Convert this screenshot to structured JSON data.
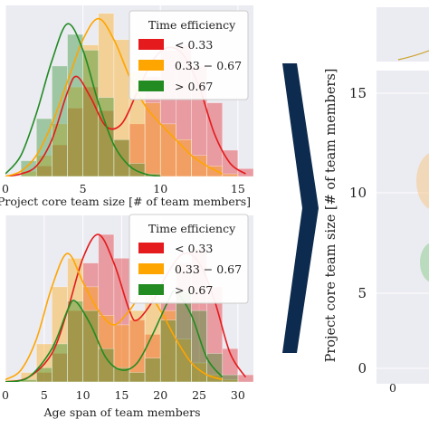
{
  "colors": {
    "low": "#e41a1c",
    "mid": "#ffa500",
    "high": "#228b22",
    "panel_bg": "#ebebf2",
    "arrow": "#0d2b4e"
  },
  "arrow_icon": "right-chevron-arrow",
  "chart_data": [
    {
      "type": "histogram",
      "panel": "top-left",
      "xlabel": "Project core team size [# of team members]",
      "ylabel": "",
      "xlim": [
        0,
        16
      ],
      "xticks": [
        "0",
        "5",
        "10",
        "15"
      ],
      "grid": true,
      "legend": {
        "placement": "top-right",
        "title": "Time efficiency",
        "entries": [
          "< 0.33",
          "0.33 − 0.67",
          "> 0.67"
        ]
      },
      "series": [
        {
          "name": "< 0.33",
          "color": "low",
          "bin_edges": [
            0,
            1,
            2,
            3,
            4,
            5,
            6,
            7,
            8,
            9,
            10,
            11,
            12,
            13,
            14,
            15,
            16
          ],
          "counts": [
            0,
            0,
            4,
            12,
            26,
            34,
            25,
            14,
            20,
            38,
            48,
            50,
            42,
            28,
            10,
            3,
            0
          ],
          "kde": [
            [
              0,
              0
            ],
            [
              1,
              1
            ],
            [
              2,
              4
            ],
            [
              3,
              14
            ],
            [
              4,
              32
            ],
            [
              4.6,
              38
            ],
            [
              5.5,
              30
            ],
            [
              6.5,
              19
            ],
            [
              7.5,
              20
            ],
            [
              8.5,
              32
            ],
            [
              9.5,
              44
            ],
            [
              10.5,
              49
            ],
            [
              11.5,
              46
            ],
            [
              12.5,
              34
            ],
            [
              13.5,
              16
            ],
            [
              14.5,
              5
            ],
            [
              15.5,
              1
            ]
          ]
        },
        {
          "name": "0.33 − 0.67",
          "color": "mid",
          "bin_edges": [
            0,
            1,
            2,
            3,
            4,
            5,
            6,
            7,
            8,
            9,
            10,
            11,
            12,
            13,
            14,
            15,
            16
          ],
          "counts": [
            0,
            2,
            8,
            20,
            34,
            50,
            62,
            52,
            40,
            28,
            20,
            14,
            8,
            4,
            1,
            0,
            0
          ],
          "kde": [
            [
              0,
              0
            ],
            [
              1,
              2
            ],
            [
              2,
              8
            ],
            [
              3,
              20
            ],
            [
              4,
              36
            ],
            [
              5,
              52
            ],
            [
              6,
              60
            ],
            [
              7,
              52
            ],
            [
              8,
              38
            ],
            [
              9,
              27
            ],
            [
              10,
              20
            ],
            [
              11,
              14
            ],
            [
              12,
              8
            ],
            [
              13,
              4
            ],
            [
              14,
              1
            ]
          ]
        },
        {
          "name": "> 0.67",
          "color": "high",
          "bin_edges": [
            0,
            1,
            2,
            3,
            4,
            5,
            6,
            7,
            8,
            9,
            10,
            11,
            12,
            13,
            14,
            15,
            16
          ],
          "counts": [
            0,
            6,
            22,
            42,
            54,
            48,
            30,
            14,
            5,
            1,
            0,
            0,
            0,
            0,
            0,
            0,
            0
          ],
          "kde": [
            [
              0,
              1
            ],
            [
              1,
              8
            ],
            [
              2,
              24
            ],
            [
              3,
              44
            ],
            [
              4,
              58
            ],
            [
              5,
              48
            ],
            [
              6,
              28
            ],
            [
              7,
              12
            ],
            [
              8,
              4
            ],
            [
              9,
              1
            ],
            [
              10,
              0
            ]
          ]
        }
      ],
      "ylim": [
        0,
        65
      ]
    },
    {
      "type": "histogram",
      "panel": "bottom-left",
      "xlabel": "Age span of team members",
      "ylabel": "",
      "xlim": [
        0,
        32
      ],
      "xticks": [
        "0",
        "5",
        "10",
        "15",
        "20",
        "25",
        "30"
      ],
      "grid": true,
      "legend": {
        "placement": "top-right",
        "title": "Time efficiency",
        "entries": [
          "< 0.33",
          "0.33 − 0.67",
          "> 0.67"
        ]
      },
      "series": [
        {
          "name": "< 0.33",
          "color": "low",
          "bin_edges": [
            0,
            2,
            4,
            6,
            8,
            10,
            12,
            14,
            16,
            18,
            20,
            22,
            24,
            26,
            28,
            30,
            32
          ],
          "counts": [
            0,
            0,
            4,
            12,
            30,
            50,
            62,
            52,
            26,
            20,
            34,
            50,
            56,
            40,
            14,
            3,
            0
          ],
          "kde": [
            [
              0,
              0
            ],
            [
              3,
              2
            ],
            [
              6,
              12
            ],
            [
              8,
              30
            ],
            [
              10,
              52
            ],
            [
              12,
              62
            ],
            [
              14,
              50
            ],
            [
              16,
              30
            ],
            [
              17,
              26
            ],
            [
              19,
              34
            ],
            [
              21,
              46
            ],
            [
              23,
              54
            ],
            [
              25,
              50
            ],
            [
              27,
              34
            ],
            [
              29,
              12
            ],
            [
              31,
              2
            ]
          ]
        },
        {
          "name": "0.33 − 0.67",
          "color": "mid",
          "bin_edges": [
            0,
            2,
            4,
            6,
            8,
            10,
            12,
            14,
            16,
            18,
            20,
            22,
            24,
            26,
            28,
            30,
            32
          ],
          "counts": [
            1,
            4,
            16,
            40,
            52,
            40,
            28,
            24,
            30,
            36,
            30,
            18,
            8,
            3,
            1,
            0,
            0
          ],
          "kde": [
            [
              0,
              1
            ],
            [
              2,
              5
            ],
            [
              4,
              18
            ],
            [
              6,
              40
            ],
            [
              8,
              54
            ],
            [
              10,
              42
            ],
            [
              12,
              30
            ],
            [
              14,
              24
            ],
            [
              16,
              30
            ],
            [
              18,
              38
            ],
            [
              20,
              30
            ],
            [
              22,
              18
            ],
            [
              24,
              8
            ],
            [
              26,
              3
            ],
            [
              28,
              1
            ]
          ]
        },
        {
          "name": "> 0.67",
          "color": "high",
          "bin_edges": [
            0,
            2,
            4,
            6,
            8,
            10,
            12,
            14,
            16,
            18,
            20,
            22,
            24,
            26,
            28,
            30,
            32
          ],
          "counts": [
            0,
            1,
            6,
            16,
            34,
            30,
            14,
            6,
            4,
            10,
            26,
            38,
            30,
            12,
            3,
            0,
            0
          ],
          "kde": [
            [
              0,
              0
            ],
            [
              3,
              2
            ],
            [
              6,
              14
            ],
            [
              8,
              30
            ],
            [
              9,
              34
            ],
            [
              11,
              24
            ],
            [
              13,
              10
            ],
            [
              15,
              5
            ],
            [
              17,
              8
            ],
            [
              19,
              20
            ],
            [
              21,
              34
            ],
            [
              22,
              38
            ],
            [
              24,
              28
            ],
            [
              26,
              10
            ],
            [
              28,
              2
            ]
          ]
        }
      ],
      "ylim": [
        0,
        70
      ]
    },
    {
      "type": "kde-joint",
      "panel": "right",
      "xlabel": "",
      "ylabel": "Project core team size [# of team members]",
      "ylim": [
        -1,
        17
      ],
      "yticks": [
        "0",
        "5",
        "10",
        "15"
      ],
      "xticks": [
        "0"
      ]
    }
  ]
}
